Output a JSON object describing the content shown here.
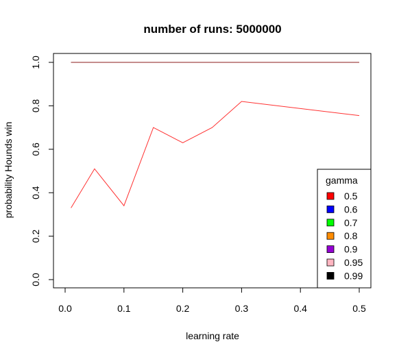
{
  "chart_data": {
    "type": "line",
    "title": "number of runs:  5000000",
    "xlabel": "learning rate",
    "ylabel": "probability Hounds win",
    "xlim": [
      0.0,
      0.5
    ],
    "ylim": [
      0.0,
      1.0
    ],
    "x_ticks": [
      "0.0",
      "0.1",
      "0.2",
      "0.3",
      "0.4",
      "0.5"
    ],
    "y_ticks": [
      "0.0",
      "0.2",
      "0.4",
      "0.6",
      "0.8",
      "1.0"
    ],
    "grid": false,
    "legend": {
      "title": "gamma",
      "placement": "bottom-right",
      "entries": [
        {
          "label": "0.5",
          "color": "#ff0000"
        },
        {
          "label": "0.6",
          "color": "#0000ff"
        },
        {
          "label": "0.7",
          "color": "#00ff00"
        },
        {
          "label": "0.8",
          "color": "#ff8c00"
        },
        {
          "label": "0.9",
          "color": "#9400d3"
        },
        {
          "label": "0.95",
          "color": "#ffb6c1"
        },
        {
          "label": "0.99",
          "color": "#000000"
        }
      ]
    },
    "x": [
      0.01,
      0.05,
      0.1,
      0.15,
      0.2,
      0.25,
      0.3,
      0.5
    ],
    "series": [
      {
        "name": "0.5",
        "color": "#ff3030",
        "values": [
          0.33,
          0.51,
          0.34,
          0.7,
          0.63,
          0.7,
          0.82,
          0.755
        ]
      },
      {
        "name": "0.99",
        "color": "#000000",
        "values": [
          1.0,
          1.0,
          1.0,
          1.0,
          1.0,
          1.0,
          1.0,
          1.0
        ]
      },
      {
        "name": "0.95",
        "color": "#8b1a1a",
        "values": [
          1.0,
          1.0,
          1.0,
          1.0,
          1.0,
          1.0,
          1.0,
          1.0
        ]
      }
    ]
  }
}
